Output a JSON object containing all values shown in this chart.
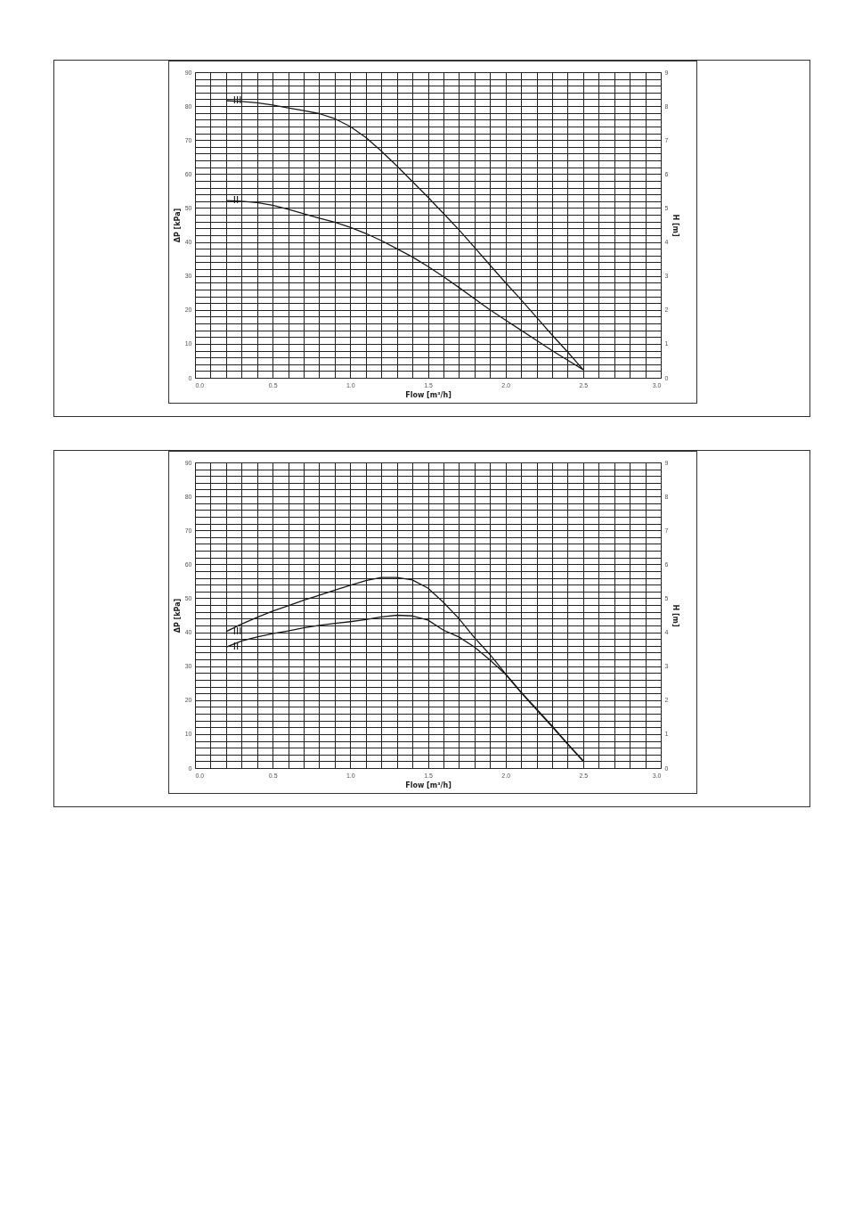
{
  "chart_data": [
    {
      "type": "line",
      "xlabel": "Flow [m³/h]",
      "ylabel": "ΔP [kPa]",
      "y2label": "H [m]",
      "x": [
        0.2,
        0.3,
        0.4,
        0.5,
        0.6,
        0.7,
        0.8,
        0.9,
        1.0,
        1.1,
        1.2,
        1.3,
        1.4,
        1.5,
        1.6,
        1.7,
        1.8,
        1.9,
        2.0,
        2.1,
        2.2,
        2.3,
        2.4,
        2.5
      ],
      "series": [
        {
          "name": "III",
          "color": "#1a1a1a",
          "values": [
            81.6,
            81.4,
            81,
            80.3,
            79.5,
            78.7,
            77.8,
            76.3,
            74,
            70.8,
            66.8,
            62.4,
            57.8,
            53.2,
            48.4,
            43.6,
            38.4,
            33.2,
            28,
            23,
            17.8,
            12.6,
            7.6,
            2.4
          ]
        },
        {
          "name": "II",
          "color": "#1a1a1a",
          "values": [
            52.2,
            52,
            51.6,
            50.8,
            49.6,
            48.3,
            47,
            45.8,
            44.3,
            42.5,
            40.4,
            38,
            35.6,
            32.8,
            29.8,
            26.6,
            23.3,
            20,
            17,
            14,
            11,
            8,
            5.2,
            2.4
          ]
        }
      ],
      "xlim": [
        0,
        3
      ],
      "ylim": [
        0,
        90
      ],
      "y2lim": [
        0,
        9
      ],
      "xticks": [
        {
          "value": 0,
          "label": "0.0"
        },
        {
          "value": 0.1,
          "label": null
        },
        {
          "value": 0.2,
          "label": null
        },
        {
          "value": 0.3,
          "label": null
        },
        {
          "value": 0.4,
          "label": null
        },
        {
          "value": 0.5,
          "label": "0.5"
        },
        {
          "value": 0.6,
          "label": null
        },
        {
          "value": 0.7,
          "label": null
        },
        {
          "value": 0.8,
          "label": null
        },
        {
          "value": 0.9,
          "label": null
        },
        {
          "value": 1,
          "label": "1.0"
        },
        {
          "value": 1.1,
          "label": null
        },
        {
          "value": 1.2,
          "label": null
        },
        {
          "value": 1.3,
          "label": null
        },
        {
          "value": 1.4,
          "label": null
        },
        {
          "value": 1.5,
          "label": "1.5"
        },
        {
          "value": 1.6,
          "label": null
        },
        {
          "value": 1.7,
          "label": null
        },
        {
          "value": 1.8,
          "label": null
        },
        {
          "value": 1.9,
          "label": null
        },
        {
          "value": 2,
          "label": "2.0"
        },
        {
          "value": 2.1,
          "label": null
        },
        {
          "value": 2.2,
          "label": null
        },
        {
          "value": 2.3,
          "label": null
        },
        {
          "value": 2.4,
          "label": null
        },
        {
          "value": 2.5,
          "label": "2.5"
        },
        {
          "value": 2.6,
          "label": null
        },
        {
          "value": 2.7,
          "label": null
        },
        {
          "value": 2.8,
          "label": null
        },
        {
          "value": 2.9,
          "label": null
        },
        {
          "value": 3,
          "label": "3.0"
        }
      ],
      "yticks": [
        0,
        {
          "value": 2,
          "label": null
        },
        {
          "value": 4,
          "label": null
        },
        {
          "value": 6,
          "label": null
        },
        {
          "value": 8,
          "label": null
        },
        10,
        {
          "value": 12,
          "label": null
        },
        {
          "value": 14,
          "label": null
        },
        {
          "value": 16,
          "label": null
        },
        {
          "value": 18,
          "label": null
        },
        20,
        {
          "value": 22,
          "label": null
        },
        {
          "value": 24,
          "label": null
        },
        {
          "value": 26,
          "label": null
        },
        {
          "value": 28,
          "label": null
        },
        30,
        {
          "value": 32,
          "label": null
        },
        {
          "value": 34,
          "label": null
        },
        {
          "value": 36,
          "label": null
        },
        {
          "value": 38,
          "label": null
        },
        40,
        {
          "value": 42,
          "label": null
        },
        {
          "value": 44,
          "label": null
        },
        {
          "value": 46,
          "label": null
        },
        {
          "value": 48,
          "label": null
        },
        50,
        {
          "value": 52,
          "label": null
        },
        {
          "value": 54,
          "label": null
        },
        {
          "value": 56,
          "label": null
        },
        {
          "value": 58,
          "label": null
        },
        60,
        {
          "value": 62,
          "label": null
        },
        {
          "value": 64,
          "label": null
        },
        {
          "value": 66,
          "label": null
        },
        {
          "value": 68,
          "label": null
        },
        70,
        {
          "value": 72,
          "label": null
        },
        {
          "value": 74,
          "label": null
        },
        {
          "value": 76,
          "label": null
        },
        {
          "value": 78,
          "label": null
        },
        80,
        {
          "value": 82,
          "label": null
        },
        {
          "value": 84,
          "label": null
        },
        {
          "value": 86,
          "label": null
        },
        {
          "value": 88,
          "label": null
        },
        90
      ],
      "y2ticks": [
        0,
        1,
        2,
        3,
        4,
        5,
        6,
        7,
        8,
        9
      ],
      "grid": true,
      "marker": "none",
      "line_style": "solid"
    },
    {
      "type": "line",
      "xlabel": "Flow [m³/h]",
      "ylabel": "ΔP [kPa]",
      "y2label": "H [m]",
      "x": [
        0.2,
        0.3,
        0.4,
        0.5,
        0.6,
        0.7,
        0.8,
        0.9,
        1.0,
        1.1,
        1.2,
        1.3,
        1.4,
        1.5,
        1.6,
        1.7,
        1.8,
        1.9,
        2.0,
        2.1,
        2.2,
        2.3,
        2.4,
        2.5
      ],
      "series": [
        {
          "name": "III",
          "color": "#1a1a1a",
          "values": [
            40.2,
            42.4,
            44.4,
            46.2,
            47.8,
            49.4,
            50.9,
            52.4,
            53.8,
            55.2,
            56.1,
            56.1,
            55.4,
            53,
            48.8,
            44,
            38.4,
            33.4,
            27.8,
            22.4,
            17.4,
            12.4,
            7.2,
            2.2
          ]
        },
        {
          "name": "II",
          "color": "#1a1a1a",
          "values": [
            35.6,
            37.4,
            38.6,
            39.6,
            40.4,
            41.3,
            42,
            42.6,
            43.1,
            43.7,
            44.5,
            45,
            44.8,
            43.6,
            40.6,
            38.6,
            35.6,
            31.8,
            27.6,
            22.2,
            17.2,
            12.2,
            7,
            2
          ]
        }
      ],
      "xlim": [
        0,
        3
      ],
      "ylim": [
        0,
        90
      ],
      "y2lim": [
        0,
        9
      ],
      "xticks": [
        {
          "value": 0,
          "label": "0.0"
        },
        {
          "value": 0.1,
          "label": null
        },
        {
          "value": 0.2,
          "label": null
        },
        {
          "value": 0.3,
          "label": null
        },
        {
          "value": 0.4,
          "label": null
        },
        {
          "value": 0.5,
          "label": "0.5"
        },
        {
          "value": 0.6,
          "label": null
        },
        {
          "value": 0.7,
          "label": null
        },
        {
          "value": 0.8,
          "label": null
        },
        {
          "value": 0.9,
          "label": null
        },
        {
          "value": 1,
          "label": "1.0"
        },
        {
          "value": 1.1,
          "label": null
        },
        {
          "value": 1.2,
          "label": null
        },
        {
          "value": 1.3,
          "label": null
        },
        {
          "value": 1.4,
          "label": null
        },
        {
          "value": 1.5,
          "label": "1.5"
        },
        {
          "value": 1.6,
          "label": null
        },
        {
          "value": 1.7,
          "label": null
        },
        {
          "value": 1.8,
          "label": null
        },
        {
          "value": 1.9,
          "label": null
        },
        {
          "value": 2,
          "label": "2.0"
        },
        {
          "value": 2.1,
          "label": null
        },
        {
          "value": 2.2,
          "label": null
        },
        {
          "value": 2.3,
          "label": null
        },
        {
          "value": 2.4,
          "label": null
        },
        {
          "value": 2.5,
          "label": "2.5"
        },
        {
          "value": 2.6,
          "label": null
        },
        {
          "value": 2.7,
          "label": null
        },
        {
          "value": 2.8,
          "label": null
        },
        {
          "value": 2.9,
          "label": null
        },
        {
          "value": 3,
          "label": "3.0"
        }
      ],
      "yticks": [
        0,
        {
          "value": 2,
          "label": null
        },
        {
          "value": 4,
          "label": null
        },
        {
          "value": 6,
          "label": null
        },
        {
          "value": 8,
          "label": null
        },
        10,
        {
          "value": 12,
          "label": null
        },
        {
          "value": 14,
          "label": null
        },
        {
          "value": 16,
          "label": null
        },
        {
          "value": 18,
          "label": null
        },
        20,
        {
          "value": 22,
          "label": null
        },
        {
          "value": 24,
          "label": null
        },
        {
          "value": 26,
          "label": null
        },
        {
          "value": 28,
          "label": null
        },
        30,
        {
          "value": 32,
          "label": null
        },
        {
          "value": 34,
          "label": null
        },
        {
          "value": 36,
          "label": null
        },
        {
          "value": 38,
          "label": null
        },
        40,
        {
          "value": 42,
          "label": null
        },
        {
          "value": 44,
          "label": null
        },
        {
          "value": 46,
          "label": null
        },
        {
          "value": 48,
          "label": null
        },
        50,
        {
          "value": 52,
          "label": null
        },
        {
          "value": 54,
          "label": null
        },
        {
          "value": 56,
          "label": null
        },
        {
          "value": 58,
          "label": null
        },
        60,
        {
          "value": 62,
          "label": null
        },
        {
          "value": 64,
          "label": null
        },
        {
          "value": 66,
          "label": null
        },
        {
          "value": 68,
          "label": null
        },
        70,
        {
          "value": 72,
          "label": null
        },
        {
          "value": 74,
          "label": null
        },
        {
          "value": 76,
          "label": null
        },
        {
          "value": 78,
          "label": null
        },
        80,
        {
          "value": 82,
          "label": null
        },
        {
          "value": 84,
          "label": null
        },
        {
          "value": 86,
          "label": null
        },
        {
          "value": 88,
          "label": null
        },
        90
      ],
      "y2ticks": [
        0,
        1,
        2,
        3,
        4,
        5,
        6,
        7,
        8,
        9
      ],
      "grid": true,
      "marker": "none",
      "line_style": "solid"
    }
  ]
}
